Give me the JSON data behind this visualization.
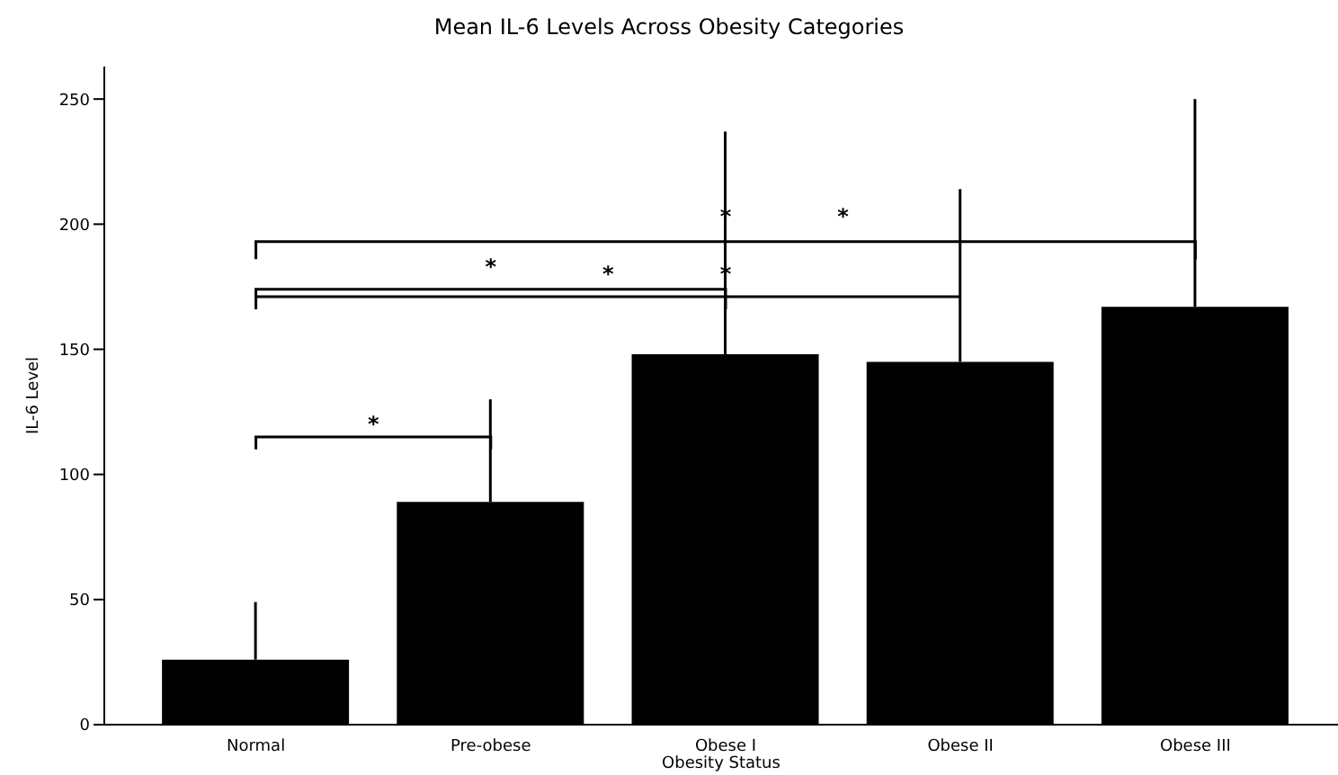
{
  "chart_data": {
    "type": "bar",
    "title": "Mean IL-6 Levels Across Obesity Categories",
    "xlabel": "Obesity Status",
    "ylabel": "IL-6 Level",
    "categories": [
      "Normal",
      "Pre-obese",
      "Obese I",
      "Obese II",
      "Obese III"
    ],
    "values": [
      26,
      89,
      148,
      145,
      167
    ],
    "errors": [
      [
        26,
        49
      ],
      [
        89,
        130
      ],
      [
        148,
        237
      ],
      [
        145,
        214
      ],
      [
        167,
        250
      ]
    ],
    "color": "#000000",
    "ylim": [
      0,
      263
    ],
    "yticks": [
      0,
      50,
      100,
      150,
      200,
      250
    ],
    "grid": false,
    "legend": false,
    "annotations": [
      "*",
      "*",
      "*",
      "*",
      "*",
      "*"
    ]
  }
}
